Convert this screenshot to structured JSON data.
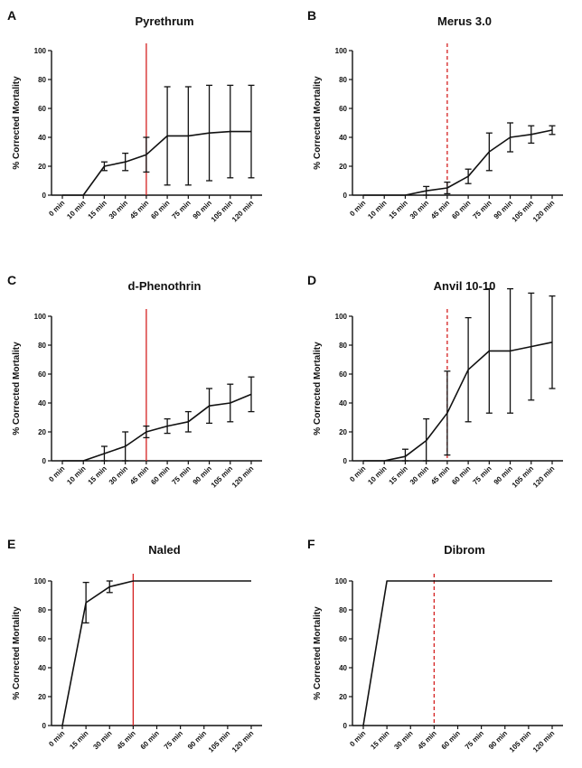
{
  "colors": {
    "axis": "#111111",
    "series": "#111111",
    "marker_line": "#d42020"
  },
  "chart_data": [
    {
      "panel": "A",
      "type": "line",
      "title": "Pyrethrum",
      "ylabel": "% Corrected Mortality",
      "ylim": [
        0,
        100
      ],
      "yticks": [
        0,
        20,
        40,
        60,
        80,
        100
      ],
      "categories": [
        "0 min",
        "10 min",
        "15 min",
        "30 min",
        "45 min",
        "60 min",
        "75 min",
        "90 min",
        "105 min",
        "120 min"
      ],
      "values": [
        0,
        0,
        20,
        23,
        28,
        41,
        41,
        43,
        44,
        44
      ],
      "error": [
        0,
        0,
        3,
        6,
        12,
        34,
        34,
        33,
        32,
        32
      ],
      "vline": {
        "at": "45 min",
        "style": "solid"
      }
    },
    {
      "panel": "B",
      "type": "line",
      "title": "Merus 3.0",
      "ylabel": "% Corrected Mortality",
      "ylim": [
        0,
        100
      ],
      "yticks": [
        0,
        20,
        40,
        60,
        80,
        100
      ],
      "categories": [
        "0 min",
        "10 min",
        "15 min",
        "30 min",
        "45 min",
        "60 min",
        "75 min",
        "90 min",
        "105 min",
        "120 min"
      ],
      "values": [
        0,
        0,
        0,
        3,
        5,
        13,
        30,
        40,
        42,
        45
      ],
      "error": [
        0,
        0,
        0,
        3,
        4,
        5,
        13,
        10,
        6,
        3
      ],
      "vline": {
        "at": "45 min",
        "style": "dashed"
      }
    },
    {
      "panel": "C",
      "type": "line",
      "title": "d-Phenothrin",
      "ylabel": "% Corrected Mortality",
      "ylim": [
        0,
        100
      ],
      "yticks": [
        0,
        20,
        40,
        60,
        80,
        100
      ],
      "categories": [
        "0 min",
        "10 min",
        "15 min",
        "30 min",
        "45 min",
        "60 min",
        "75 min",
        "90 min",
        "105 min",
        "120 min"
      ],
      "values": [
        0,
        0,
        5,
        10,
        20,
        24,
        27,
        38,
        40,
        46
      ],
      "error": [
        0,
        0,
        5,
        10,
        4,
        5,
        7,
        12,
        13,
        12
      ],
      "vline": {
        "at": "45 min",
        "style": "solid"
      }
    },
    {
      "panel": "D",
      "type": "line",
      "title": "Anvil 10-10",
      "ylabel": "% Corrected Mortality",
      "ylim": [
        0,
        100
      ],
      "yticks": [
        0,
        20,
        40,
        60,
        80,
        100
      ],
      "categories": [
        "0 min",
        "10 min",
        "15 min",
        "30 min",
        "45 min",
        "60 min",
        "75 min",
        "90 min",
        "105 min",
        "120 min"
      ],
      "values": [
        0,
        0,
        3,
        14,
        33,
        63,
        76,
        76,
        79,
        82
      ],
      "error": [
        0,
        0,
        5,
        15,
        29,
        36,
        43,
        43,
        37,
        32
      ],
      "vline": {
        "at": "45 min",
        "style": "dashed"
      }
    },
    {
      "panel": "E",
      "type": "line",
      "title": "Naled",
      "ylabel": "% Corrected Mortality",
      "ylim": [
        0,
        100
      ],
      "yticks": [
        0,
        20,
        40,
        60,
        80,
        100
      ],
      "categories": [
        "0 min",
        "15 min",
        "30 min",
        "45 min",
        "60 min",
        "75 min",
        "90 min",
        "105 min",
        "120 min"
      ],
      "values": [
        0,
        85,
        96,
        100,
        100,
        100,
        100,
        100,
        100
      ],
      "error": [
        0,
        14,
        4,
        0,
        0,
        0,
        0,
        0,
        0
      ],
      "error_up_clip": 100,
      "vline": {
        "at": "45 min",
        "style": "solid"
      }
    },
    {
      "panel": "F",
      "type": "line",
      "title": "Dibrom",
      "ylabel": "% Corrected Mortality",
      "ylim": [
        0,
        100
      ],
      "yticks": [
        0,
        20,
        40,
        60,
        80,
        100
      ],
      "categories": [
        "0 min",
        "15 min",
        "30 min",
        "45 min",
        "60 min",
        "75 min",
        "90 min",
        "105 min",
        "120 min"
      ],
      "values": [
        0,
        100,
        100,
        100,
        100,
        100,
        100,
        100,
        100
      ],
      "error": [
        0,
        0,
        0,
        0,
        0,
        0,
        0,
        0,
        0
      ],
      "vline": {
        "at": "45 min",
        "style": "dashed"
      }
    }
  ]
}
